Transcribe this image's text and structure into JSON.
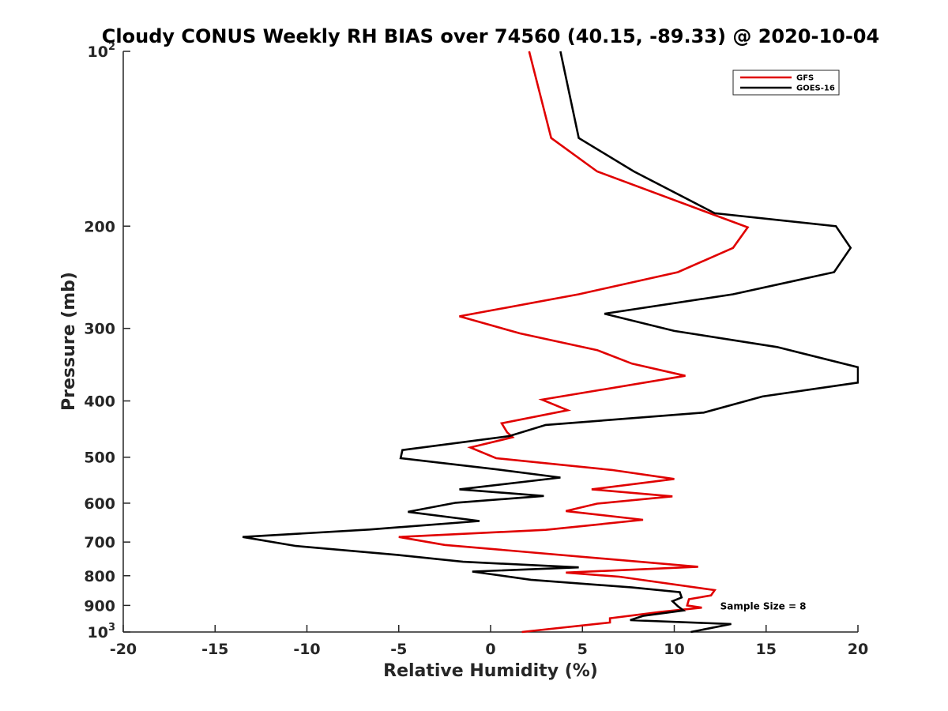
{
  "chart_data": {
    "type": "line",
    "title": "Cloudy CONUS Weekly RH BIAS over 74560 (40.15, -89.33) @ 2020-10-04",
    "xlabel": "Relative Humidity (%)",
    "ylabel": "Pressure (mb)",
    "xlim": [
      -20,
      20
    ],
    "ylim": [
      100,
      1000
    ],
    "y_scale": "log",
    "y_reversed": true,
    "grid": false,
    "legend_position": "top-right",
    "x_ticks": [
      {
        "value": -20,
        "label": "-20"
      },
      {
        "value": -15,
        "label": "-15"
      },
      {
        "value": -10,
        "label": "-10"
      },
      {
        "value": -5,
        "label": "-5"
      },
      {
        "value": 0,
        "label": "0"
      },
      {
        "value": 5,
        "label": "5"
      },
      {
        "value": 10,
        "label": "10"
      },
      {
        "value": 15,
        "label": "15"
      },
      {
        "value": 20,
        "label": "20"
      }
    ],
    "y_ticks": [
      {
        "value": 100,
        "base": "10",
        "sup": "2"
      },
      {
        "value": 200,
        "base": "200",
        "sup": ""
      },
      {
        "value": 300,
        "base": "300",
        "sup": ""
      },
      {
        "value": 400,
        "base": "400",
        "sup": ""
      },
      {
        "value": 500,
        "base": "500",
        "sup": ""
      },
      {
        "value": 600,
        "base": "600",
        "sup": ""
      },
      {
        "value": 700,
        "base": "700",
        "sup": ""
      },
      {
        "value": 800,
        "base": "800",
        "sup": ""
      },
      {
        "value": 900,
        "base": "900",
        "sup": ""
      },
      {
        "value": 1000,
        "base": "10",
        "sup": "3"
      }
    ],
    "series": [
      {
        "name": "GFS",
        "color": "#e00000",
        "points": [
          {
            "x": 2.1,
            "y": 100
          },
          {
            "x": 3.3,
            "y": 141
          },
          {
            "x": 5.8,
            "y": 161
          },
          {
            "x": 14.0,
            "y": 201
          },
          {
            "x": 13.2,
            "y": 218
          },
          {
            "x": 10.2,
            "y": 240
          },
          {
            "x": 4.8,
            "y": 262
          },
          {
            "x": -1.7,
            "y": 286
          },
          {
            "x": 1.6,
            "y": 306
          },
          {
            "x": 5.8,
            "y": 327
          },
          {
            "x": 7.7,
            "y": 345
          },
          {
            "x": 10.6,
            "y": 362
          },
          {
            "x": 2.8,
            "y": 398
          },
          {
            "x": 4.2,
            "y": 415
          },
          {
            "x": 0.6,
            "y": 437
          },
          {
            "x": 0.9,
            "y": 453
          },
          {
            "x": 1.2,
            "y": 462
          },
          {
            "x": -1.1,
            "y": 481
          },
          {
            "x": 0.3,
            "y": 502
          },
          {
            "x": 6.6,
            "y": 526
          },
          {
            "x": 10.0,
            "y": 545
          },
          {
            "x": 5.5,
            "y": 568
          },
          {
            "x": 9.9,
            "y": 584
          },
          {
            "x": 5.8,
            "y": 601
          },
          {
            "x": 4.1,
            "y": 619
          },
          {
            "x": 8.3,
            "y": 641
          },
          {
            "x": 3.0,
            "y": 667
          },
          {
            "x": -5.0,
            "y": 686
          },
          {
            "x": -2.5,
            "y": 708
          },
          {
            "x": 11.3,
            "y": 772
          },
          {
            "x": 4.1,
            "y": 790
          },
          {
            "x": 7.0,
            "y": 803
          },
          {
            "x": 12.2,
            "y": 847
          },
          {
            "x": 12.0,
            "y": 865
          },
          {
            "x": 10.8,
            "y": 878
          },
          {
            "x": 10.7,
            "y": 900
          },
          {
            "x": 11.5,
            "y": 908
          },
          {
            "x": 9.3,
            "y": 923
          },
          {
            "x": 6.5,
            "y": 947
          },
          {
            "x": 6.5,
            "y": 963
          },
          {
            "x": 1.7,
            "y": 1000
          }
        ]
      },
      {
        "name": "GOES-16",
        "color": "#000000",
        "points": [
          {
            "x": 3.8,
            "y": 100
          },
          {
            "x": 4.8,
            "y": 141
          },
          {
            "x": 7.8,
            "y": 161
          },
          {
            "x": 12.2,
            "y": 190
          },
          {
            "x": 18.8,
            "y": 200
          },
          {
            "x": 19.6,
            "y": 218
          },
          {
            "x": 18.7,
            "y": 240
          },
          {
            "x": 13.2,
            "y": 262
          },
          {
            "x": 6.2,
            "y": 283
          },
          {
            "x": 10.0,
            "y": 303
          },
          {
            "x": 15.6,
            "y": 323
          },
          {
            "x": 20.0,
            "y": 350
          },
          {
            "x": 20.0,
            "y": 372
          },
          {
            "x": 14.8,
            "y": 393
          },
          {
            "x": 11.6,
            "y": 419
          },
          {
            "x": 3.0,
            "y": 440
          },
          {
            "x": 1.0,
            "y": 460
          },
          {
            "x": -4.8,
            "y": 486
          },
          {
            "x": -4.9,
            "y": 502
          },
          {
            "x": 0.4,
            "y": 525
          },
          {
            "x": 3.8,
            "y": 542
          },
          {
            "x": -1.7,
            "y": 568
          },
          {
            "x": 2.9,
            "y": 583
          },
          {
            "x": -1.9,
            "y": 599
          },
          {
            "x": -4.5,
            "y": 621
          },
          {
            "x": -0.6,
            "y": 644
          },
          {
            "x": -6.6,
            "y": 666
          },
          {
            "x": -13.5,
            "y": 686
          },
          {
            "x": -10.6,
            "y": 711
          },
          {
            "x": -5.0,
            "y": 737
          },
          {
            "x": -1.5,
            "y": 757
          },
          {
            "x": 4.8,
            "y": 774
          },
          {
            "x": -1.0,
            "y": 787
          },
          {
            "x": 2.2,
            "y": 813
          },
          {
            "x": 7.7,
            "y": 838
          },
          {
            "x": 10.3,
            "y": 854
          },
          {
            "x": 10.4,
            "y": 872
          },
          {
            "x": 9.9,
            "y": 885
          },
          {
            "x": 10.2,
            "y": 903
          },
          {
            "x": 10.5,
            "y": 918
          },
          {
            "x": 8.3,
            "y": 938
          },
          {
            "x": 7.6,
            "y": 954
          },
          {
            "x": 13.1,
            "y": 969
          },
          {
            "x": 10.9,
            "y": 1000
          }
        ]
      }
    ],
    "annotations": [
      {
        "text": "Sample Size = 8",
        "x": 12.5,
        "y": 900
      }
    ]
  }
}
